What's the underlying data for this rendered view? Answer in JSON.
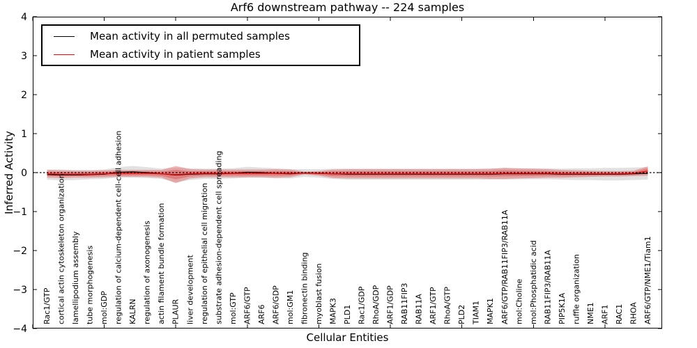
{
  "title": "Arf6 downstream pathway -- 224 samples",
  "axes": {
    "ylabel": "Inferred Activity",
    "xlabel": "Cellular Entities",
    "yticks": [
      {
        "value": 4,
        "label": "4"
      },
      {
        "value": 3,
        "label": "3"
      },
      {
        "value": 2,
        "label": "2"
      },
      {
        "value": 1,
        "label": "1"
      },
      {
        "value": 0,
        "label": "0"
      },
      {
        "value": -1,
        "label": "−1"
      },
      {
        "value": -2,
        "label": "−2"
      },
      {
        "value": -3,
        "label": "−3"
      },
      {
        "value": -4,
        "label": "−4"
      }
    ]
  },
  "legend": {
    "items": [
      {
        "label": "Mean activity in all permuted samples",
        "color": "#000000"
      },
      {
        "label": "Mean activity in patient samples",
        "color": "#ff0000"
      }
    ]
  },
  "chart_data": {
    "type": "line",
    "title": "Arf6 downstream pathway -- 224 samples",
    "xlabel": "Cellular Entities",
    "ylabel": "Inferred Activity",
    "ylim": [
      -4,
      4
    ],
    "x_axis_range": [
      0,
      44
    ],
    "x_major_tick_values": [
      0,
      5,
      10,
      15,
      20,
      25,
      30,
      35,
      40
    ],
    "grid": false,
    "legend_position": "upper left",
    "zero_line": {
      "style": "dotted",
      "color": "#000000",
      "value": 0
    },
    "categories": [
      "Rac1/GTP",
      "cortical actin cytoskeleton organization",
      "lamellipodium assembly",
      "tube morphogenesis",
      "mol:GDP",
      "regulation of calcium-dependent cell-cell adhesion",
      "KALRN",
      "regulation of axonogenesis",
      "actin filament bundle formation",
      "PLAUR",
      "liver development",
      "regulation of epithelial cell migration",
      "substrate adhesion-dependent cell spreading",
      "mol:GTP",
      "ARF6/GTP",
      "ARF6",
      "ARF6/GDP",
      "mol:GM1",
      "fibronectin binding",
      "myoblast fusion",
      "MAPK3",
      "PLD1",
      "Rac1/GDP",
      "RhoA/GDP",
      "ARF1/GDP",
      "RAB11FIP3",
      "RAB11A",
      "ARF1/GTP",
      "RhoA/GTP",
      "PLD2",
      "TIAM1",
      "MAPK1",
      "ARF6/GTP/RAB11FIP3/RAB11A",
      "mol:Choline",
      "mol:Phosphatidic acid",
      "RAB11FIP3/RAB11A",
      "PIP5K1A",
      "ruffle organization",
      "NME1",
      "ARF1",
      "RAC1",
      "RHOA",
      "ARF6/GTP/NME1/Tiam1"
    ],
    "series": [
      {
        "name": "Mean activity in all permuted samples",
        "color": "#000000",
        "band_color": "#c8c8c8",
        "band_opacity": 0.55,
        "values": [
          -0.05,
          -0.06,
          -0.06,
          -0.05,
          -0.04,
          0.01,
          0.02,
          0.0,
          -0.03,
          -0.06,
          -0.04,
          -0.03,
          -0.03,
          -0.02,
          0.01,
          0.0,
          -0.02,
          -0.03,
          -0.01,
          -0.02,
          -0.03,
          -0.04,
          -0.04,
          -0.04,
          -0.04,
          -0.04,
          -0.04,
          -0.04,
          -0.04,
          -0.04,
          -0.04,
          -0.04,
          -0.03,
          -0.03,
          -0.03,
          -0.03,
          -0.04,
          -0.04,
          -0.04,
          -0.04,
          -0.04,
          -0.03,
          -0.02
        ],
        "band_half_widths": [
          0.13,
          0.14,
          0.13,
          0.12,
          0.12,
          0.13,
          0.15,
          0.14,
          0.13,
          0.19,
          0.15,
          0.13,
          0.13,
          0.13,
          0.14,
          0.13,
          0.13,
          0.12,
          0.1,
          0.11,
          0.13,
          0.14,
          0.14,
          0.14,
          0.14,
          0.14,
          0.14,
          0.14,
          0.14,
          0.14,
          0.14,
          0.14,
          0.15,
          0.14,
          0.14,
          0.14,
          0.14,
          0.15,
          0.15,
          0.16,
          0.16,
          0.16,
          0.16
        ]
      },
      {
        "name": "Mean activity in patient samples",
        "color": "#ff0000",
        "band_color": "#e24a4a",
        "band_opacity": 0.38,
        "core_opacity": 0.45,
        "values": [
          -0.03,
          -0.04,
          -0.04,
          -0.04,
          -0.03,
          -0.02,
          -0.02,
          -0.02,
          -0.03,
          -0.05,
          -0.03,
          -0.02,
          -0.02,
          -0.02,
          -0.02,
          -0.02,
          -0.02,
          -0.02,
          -0.01,
          -0.02,
          -0.03,
          -0.03,
          -0.03,
          -0.03,
          -0.03,
          -0.03,
          -0.03,
          -0.03,
          -0.03,
          -0.03,
          -0.03,
          -0.03,
          -0.02,
          -0.02,
          -0.02,
          -0.02,
          -0.03,
          -0.03,
          -0.03,
          -0.03,
          -0.03,
          -0.02,
          0.04
        ],
        "band_half_widths": [
          0.1,
          0.1,
          0.09,
          0.09,
          0.09,
          0.09,
          0.09,
          0.09,
          0.1,
          0.22,
          0.12,
          0.1,
          0.1,
          0.1,
          0.1,
          0.1,
          0.11,
          0.1,
          0.04,
          0.06,
          0.11,
          0.12,
          0.12,
          0.12,
          0.12,
          0.12,
          0.12,
          0.12,
          0.12,
          0.12,
          0.12,
          0.13,
          0.14,
          0.13,
          0.12,
          0.11,
          0.1,
          0.09,
          0.08,
          0.07,
          0.07,
          0.07,
          0.12
        ]
      }
    ]
  }
}
